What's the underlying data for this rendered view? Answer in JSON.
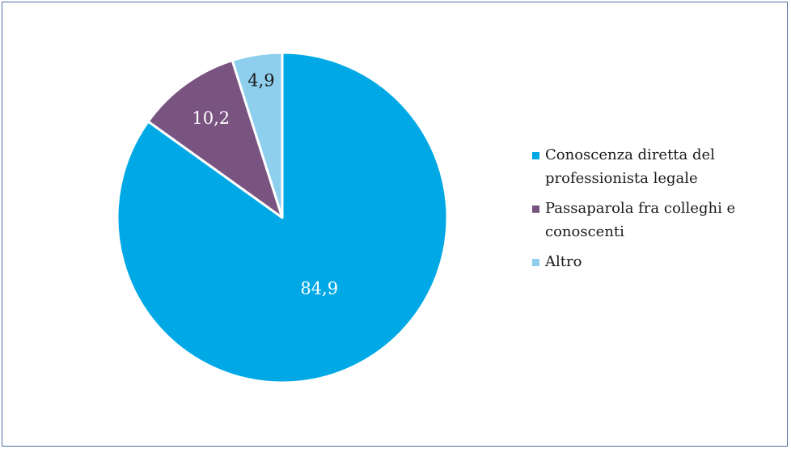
{
  "chart_data": {
    "type": "pie",
    "title": "",
    "slices": [
      {
        "label": "Conoscenza diretta del professionista legale",
        "value": 84.9,
        "display": "84,9",
        "color": "#00a9e5",
        "label_color": "#ffffff"
      },
      {
        "label": "Passaparola fra colleghi e conoscenti",
        "value": 10.2,
        "display": "10,2",
        "color": "#7a5480",
        "label_color": "#ffffff"
      },
      {
        "label": "Altro",
        "value": 4.9,
        "display": "4,9",
        "color": "#8fcfee",
        "label_color": "#1a1a1a"
      }
    ],
    "legend_position": "right",
    "start_angle": "top, clockwise"
  },
  "legend": {
    "items": [
      {
        "label_line1": "Conoscenza diretta del",
        "label_line2": "professionista legale",
        "color": "#00a9e5"
      },
      {
        "label_line1": "Passaparola fra colleghi e",
        "label_line2": "conoscenti",
        "color": "#7a5480"
      },
      {
        "label_line1": "Altro",
        "label_line2": "",
        "color": "#8fcfee"
      }
    ]
  }
}
